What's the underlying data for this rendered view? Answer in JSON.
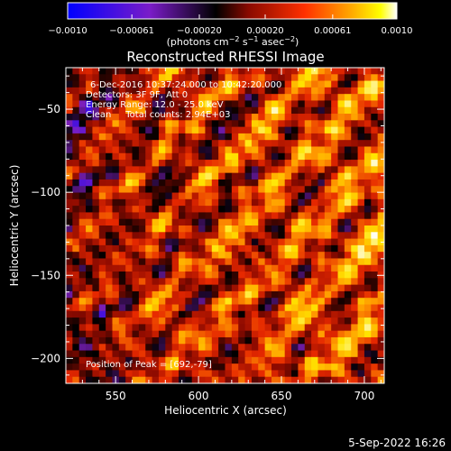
{
  "colorbar": {
    "tick_labels": [
      "−0.0010",
      "−0.00061",
      "−0.00020",
      "0.00020",
      "0.00061",
      "0.0010"
    ],
    "tick_values": [
      -0.001,
      -0.00061,
      -0.0002,
      0.0002,
      0.00061,
      0.001
    ],
    "range": [
      -0.001,
      0.001
    ],
    "unit_prefix": "(photons cm",
    "unit_exp1": "−2",
    "unit_mid": " s",
    "unit_exp2": "−1",
    "unit_mid2": " asec",
    "unit_exp3": "−2",
    "unit_suffix": ")"
  },
  "colors": {
    "background": "#000000",
    "text": "#ffffff",
    "colormap": [
      "#0000ff",
      "#8020c0",
      "#000000",
      "#a01000",
      "#ff3000",
      "#ffa000",
      "#ffff00",
      "#ffffff"
    ]
  },
  "chart_data": {
    "type": "heatmap",
    "title": "Reconstructed RHESSI Image",
    "xlabel": "Heliocentric X (arcsec)",
    "ylabel": "Heliocentric Y (arcsec)",
    "xlim": [
      520,
      712
    ],
    "ylim": [
      -215,
      -25
    ],
    "x_ticks": [
      550,
      600,
      650,
      700
    ],
    "x_tick_labels": [
      "550",
      "600",
      "650",
      "700"
    ],
    "y_ticks": [
      -50,
      -100,
      -150,
      -200
    ],
    "y_tick_labels": [
      "−50",
      "−100",
      "−150",
      "−200"
    ],
    "annotations": [
      "6-Dec-2016 10:37:24.000 to 10:42:20.000",
      "Detectors: 3F 9F, Att 0",
      "Energy Range: 12.0 - 25.0 keV",
      "Clean     Total counts: 2.94E+03"
    ],
    "peak_label": "Position of Peak = [692,-79]",
    "peak_position": [
      692,
      -79
    ],
    "total_counts": 2940,
    "energy_range_kev": [
      12.0,
      25.0
    ]
  },
  "footer": {
    "timestamp": "5-Sep-2022 16:26"
  }
}
